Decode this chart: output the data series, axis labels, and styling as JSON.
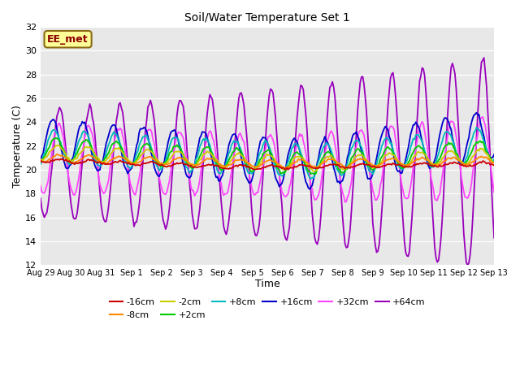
{
  "title": "Soil/Water Temperature Set 1",
  "xlabel": "Time",
  "ylabel": "Temperature (C)",
  "ylim": [
    12,
    32
  ],
  "yticks": [
    12,
    14,
    16,
    18,
    20,
    22,
    24,
    26,
    28,
    30,
    32
  ],
  "bg_color": "#e8e8e8",
  "annotation_text": "EE_met",
  "annotation_bg": "#ffff99",
  "annotation_border": "#8b6914",
  "annotation_text_color": "#8b0000",
  "colors": {
    "-16cm": "#cc0000",
    "-8cm": "#ff8800",
    "-2cm": "#cccc00",
    "+2cm": "#00cc00",
    "+8cm": "#00bbbb",
    "+16cm": "#0000cc",
    "+32cm": "#ff44ff",
    "+64cm": "#9900bb"
  },
  "legend_order": [
    "-16cm",
    "-8cm",
    "-2cm",
    "+2cm",
    "+8cm",
    "+16cm",
    "+32cm",
    "+64cm"
  ],
  "xtick_labels": [
    "Aug 29",
    "Aug 30",
    "Aug 31",
    "Sep 1",
    "Sep 2",
    "Sep 3",
    "Sep 4",
    "Sep 5",
    "Sep 6",
    "Sep 7",
    "Sep 8",
    "Sep 9",
    "Sep 10",
    "Sep 11",
    "Sep 12",
    "Sep 13"
  ]
}
